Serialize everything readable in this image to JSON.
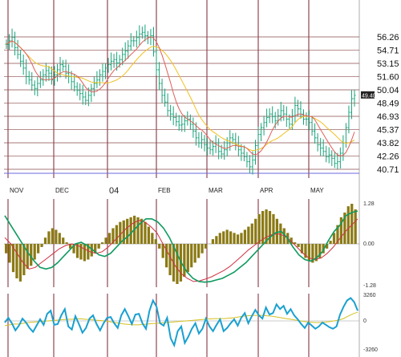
{
  "colors": {
    "candle": "#1aa37a",
    "ma_fast": "#e0605a",
    "ma_slow": "#f0c020",
    "grid_v": "#7a2030",
    "grid_h": "#8a4a4a",
    "baseline": "#6a6adc",
    "histogram": "#8b7a15",
    "macd": "#0e9a60",
    "signal": "#d03040",
    "oscillator": "#1aa0d0",
    "oscillator_signal": "#d6c020",
    "price_tag_bg": "#222222"
  },
  "chart_data": [
    {
      "type": "candlestick",
      "title": "",
      "x_ticks": [
        "NOV",
        "DEC",
        "04",
        "FEB",
        "MAR",
        "APR",
        "MAY"
      ],
      "y_ticks": [
        "56.26",
        "54.71",
        "53.15",
        "51.60",
        "50.04",
        "48.49",
        "46.93",
        "45.37",
        "43.82",
        "42.26",
        "40.71"
      ],
      "ylim": [
        40.71,
        56.26
      ],
      "last_price_label": "49.40",
      "series": [
        {
          "name": "",
          "kind": "price",
          "values": [
            55.4,
            55.8,
            56.2,
            55.0,
            54.2,
            53.4,
            52.6,
            51.6,
            51.2,
            50.6,
            50.2,
            50.8,
            51.2,
            51.8,
            52.3,
            52.0,
            51.2,
            51.8,
            52.4,
            53.0,
            52.8,
            52.0,
            51.6,
            51.0,
            50.4,
            50.0,
            49.6,
            49.2,
            48.8,
            49.4,
            50.2,
            50.8,
            51.2,
            51.8,
            52.2,
            52.6,
            53.0,
            53.4,
            53.6,
            53.2,
            53.6,
            54.2,
            54.6,
            55.2,
            55.8,
            55.8,
            56.2,
            56.6,
            56.8,
            56.4,
            56.2,
            56.4,
            54.5,
            52.4,
            50.8,
            49.4,
            48.6,
            47.6,
            47.2,
            46.8,
            46.3,
            45.9,
            46.0,
            46.4,
            46.6,
            46.0,
            45.2,
            44.4,
            43.8,
            44.2,
            43.6,
            43.2,
            43.0,
            43.4,
            43.8,
            42.8,
            42.5,
            43.0,
            43.8,
            44.4,
            44.2,
            43.6,
            43.0,
            42.6,
            42.2,
            41.6,
            41.0,
            41.8,
            43.5,
            44.8,
            45.6,
            46.2,
            46.8,
            47.2,
            46.9,
            46.4,
            47.0,
            47.6,
            47.2,
            46.6,
            46.0,
            47.0,
            48.2,
            47.8,
            47.2,
            46.6,
            46.6,
            46.2,
            45.2,
            44.4,
            43.6,
            43.2,
            42.8,
            42.2,
            42.4,
            42.0,
            41.4,
            41.6,
            42.6,
            43.8,
            45.6,
            47.4,
            49.0,
            49.4
          ]
        }
      ]
    },
    {
      "type": "histogram",
      "title": "",
      "y_ticks": [
        "1.28",
        "0.00",
        "-1.28"
      ],
      "ylim": [
        -1.28,
        1.28
      ],
      "series": [
        {
          "name": "",
          "kind": "histogram",
          "values": [
            -0.3,
            -0.6,
            -0.9,
            -1.1,
            -1.2,
            -1.0,
            -0.8,
            -0.7,
            -0.5,
            -0.3,
            -0.1,
            0.2,
            0.4,
            0.5,
            0.45,
            0.35,
            0.2,
            0.05,
            -0.15,
            -0.3,
            -0.45,
            -0.5,
            -0.55,
            -0.5,
            -0.4,
            -0.3,
            -0.15,
            0.05,
            0.2,
            0.35,
            0.5,
            0.6,
            0.7,
            0.75,
            0.8,
            0.85,
            0.9,
            0.85,
            0.8,
            0.7,
            0.55,
            0.35,
            0.15,
            -0.15,
            -0.45,
            -0.75,
            -1.0,
            -1.2,
            -1.28,
            -1.2,
            -1.05,
            -0.9,
            -0.75,
            -0.6,
            -0.45,
            -0.3,
            -0.15,
            0.0,
            0.15,
            0.25,
            0.35,
            0.4,
            0.45,
            0.4,
            0.35,
            0.3,
            0.35,
            0.45,
            0.55,
            0.65,
            0.8,
            0.95,
            1.05,
            1.1,
            1.05,
            0.95,
            0.8,
            0.65,
            0.5,
            0.35,
            0.2,
            0.05,
            -0.1,
            -0.3,
            -0.45,
            -0.55,
            -0.6,
            -0.55,
            -0.45,
            -0.3,
            -0.15,
            0.1,
            0.35,
            0.6,
            0.85,
            1.0,
            1.2,
            1.28,
            1.1
          ]
        },
        {
          "name": "",
          "kind": "macd",
          "values": [
            0.9,
            0.6,
            0.3,
            0.0,
            -0.3,
            -0.55,
            -0.75,
            -0.8,
            -0.75,
            -0.6,
            -0.4,
            -0.2,
            0.0,
            0.05,
            -0.05,
            -0.2,
            -0.35,
            -0.4,
            -0.3,
            -0.1,
            0.1,
            0.25,
            0.45,
            0.65,
            0.8,
            0.8,
            0.7,
            0.5,
            0.2,
            -0.2,
            -0.6,
            -0.9,
            -1.1,
            -1.2,
            -1.22,
            -1.2,
            -1.15,
            -1.1,
            -1.0,
            -0.9,
            -0.75,
            -0.6,
            -0.4,
            -0.2,
            0.0,
            0.2,
            0.35,
            0.4,
            0.2,
            -0.1,
            -0.35,
            -0.5,
            -0.55,
            -0.45,
            -0.25,
            0.1,
            0.4,
            0.6,
            0.9,
            1.0,
            1.05
          ]
        },
        {
          "name": "",
          "kind": "signal",
          "values": [
            0.2,
            0.0,
            -0.3,
            -0.6,
            -0.8,
            -0.75,
            -0.6,
            -0.45,
            -0.3,
            -0.15,
            -0.05,
            0.0,
            -0.05,
            -0.15,
            -0.25,
            -0.3,
            -0.25,
            -0.1,
            0.1,
            0.3,
            0.5,
            0.65,
            0.75,
            0.7,
            0.55,
            0.35,
            0.0,
            -0.35,
            -0.7,
            -0.95,
            -1.1,
            -1.2,
            -1.18,
            -1.12,
            -1.05,
            -0.95,
            -0.85,
            -0.72,
            -0.55,
            -0.38,
            -0.2,
            -0.05,
            0.1,
            0.22,
            0.3,
            0.32,
            0.25,
            0.1,
            -0.1,
            -0.3,
            -0.45,
            -0.5,
            -0.45,
            -0.3,
            -0.1,
            0.15,
            0.4,
            0.6,
            0.8
          ]
        }
      ]
    },
    {
      "type": "line",
      "title": "",
      "y_ticks": [
        "3260",
        "0",
        "-3260"
      ],
      "ylim": [
        -3260,
        3260
      ],
      "series": [
        {
          "name": "",
          "kind": "oscillator",
          "values": [
            -200,
            400,
            -300,
            -1200,
            -600,
            300,
            -200,
            -900,
            -1400,
            -600,
            200,
            -500,
            900,
            1300,
            -500,
            -400,
            700,
            1500,
            -700,
            -1100,
            600,
            -400,
            -1500,
            -900,
            300,
            700,
            -400,
            -1200,
            -300,
            400,
            500,
            -300,
            -900,
            700,
            1500,
            600,
            -400,
            800,
            900,
            -300,
            -1000,
            1300,
            2600,
            1800,
            -300,
            -600,
            400,
            -2200,
            -3100,
            -1300,
            -700,
            -2800,
            -2000,
            -1000,
            -300,
            -1600,
            -1000,
            300,
            -700,
            -1300,
            -500,
            200,
            -1300,
            -900,
            -300,
            200,
            -600,
            400,
            1000,
            -300,
            600,
            1400,
            700,
            300,
            1700,
            800,
            1000,
            2100,
            1500,
            1900,
            900,
            1500,
            700,
            200,
            -400,
            -900,
            -200,
            -600,
            -1000,
            -700,
            -200,
            -500,
            -800,
            -1000,
            -700,
            800,
            1800,
            2600,
            2900,
            2400,
            1300
          ]
        },
        {
          "name": "",
          "kind": "oscillator_signal",
          "values": [
            -600,
            -500,
            -400,
            -400,
            -300,
            -200,
            -150,
            -100,
            -50,
            0,
            50,
            100,
            150,
            200,
            200,
            250,
            250,
            200,
            150,
            100,
            50,
            0,
            -100,
            -200,
            -300,
            -400,
            -450,
            -500,
            -500,
            -450,
            -400,
            -350,
            -300,
            -250,
            -200,
            -150,
            -100,
            -50,
            0,
            50,
            100,
            150,
            200,
            250,
            300,
            300,
            300,
            350,
            400,
            500,
            600,
            650,
            700,
            700,
            700,
            650,
            600,
            500,
            400,
            300,
            200,
            100,
            0,
            -100,
            -150,
            -200,
            -200,
            -150,
            -100,
            0,
            100,
            300,
            600,
            900,
            1100
          ]
        }
      ]
    }
  ]
}
